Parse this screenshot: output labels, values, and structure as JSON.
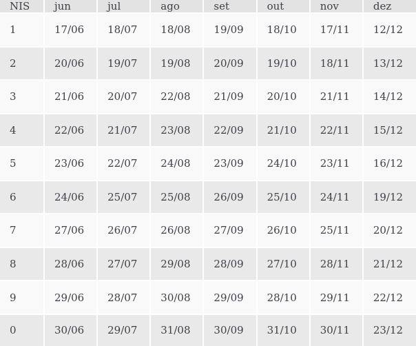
{
  "table": {
    "columns": [
      "NIS",
      "jun",
      "jul",
      "ago",
      "set",
      "out",
      "nov",
      "dez"
    ],
    "rows": [
      [
        "1",
        "17/06",
        "18/07",
        "18/08",
        "19/09",
        "18/10",
        "17/11",
        "12/12"
      ],
      [
        "2",
        "20/06",
        "19/07",
        "19/08",
        "20/09",
        "19/10",
        "18/11",
        "13/12"
      ],
      [
        "3",
        "21/06",
        "20/07",
        "22/08",
        "21/09",
        "20/10",
        "21/11",
        "14/12"
      ],
      [
        "4",
        "22/06",
        "21/07",
        "23/08",
        "22/09",
        "21/10",
        "22/11",
        "15/12"
      ],
      [
        "5",
        "23/06",
        "22/07",
        "24/08",
        "23/09",
        "24/10",
        "23/11",
        "16/12"
      ],
      [
        "6",
        "24/06",
        "25/07",
        "25/08",
        "26/09",
        "25/10",
        "24/11",
        "19/12"
      ],
      [
        "7",
        "27/06",
        "26/07",
        "26/08",
        "27/09",
        "26/10",
        "25/11",
        "20/12"
      ],
      [
        "8",
        "28/06",
        "27/07",
        "29/08",
        "28/09",
        "27/10",
        "28/11",
        "21/12"
      ],
      [
        "9",
        "29/06",
        "28/07",
        "30/08",
        "29/09",
        "28/10",
        "29/11",
        "22/12"
      ],
      [
        "0",
        "30/06",
        "29/07",
        "31/08",
        "30/09",
        "31/10",
        "30/11",
        "23/12"
      ]
    ]
  },
  "colors": {
    "header_bg": "#e3e3e3",
    "row_odd_bg": "#f9f9f9",
    "row_even_bg": "#e9e9e9",
    "border": "#ffffff",
    "text": "#3f3f46"
  },
  "chart_data": {
    "type": "table",
    "title": "",
    "columns": [
      "NIS",
      "jun",
      "jul",
      "ago",
      "set",
      "out",
      "nov",
      "dez"
    ],
    "rows": [
      [
        "1",
        "17/06",
        "18/07",
        "18/08",
        "19/09",
        "18/10",
        "17/11",
        "12/12"
      ],
      [
        "2",
        "20/06",
        "19/07",
        "19/08",
        "20/09",
        "19/10",
        "18/11",
        "13/12"
      ],
      [
        "3",
        "21/06",
        "20/07",
        "22/08",
        "21/09",
        "20/10",
        "21/11",
        "14/12"
      ],
      [
        "4",
        "22/06",
        "21/07",
        "23/08",
        "22/09",
        "21/10",
        "22/11",
        "15/12"
      ],
      [
        "5",
        "23/06",
        "22/07",
        "24/08",
        "23/09",
        "24/10",
        "23/11",
        "16/12"
      ],
      [
        "6",
        "24/06",
        "25/07",
        "25/08",
        "26/09",
        "25/10",
        "24/11",
        "19/12"
      ],
      [
        "7",
        "27/06",
        "26/07",
        "26/08",
        "27/09",
        "26/10",
        "25/11",
        "20/12"
      ],
      [
        "8",
        "28/06",
        "27/07",
        "29/08",
        "28/09",
        "27/10",
        "28/11",
        "21/12"
      ],
      [
        "9",
        "29/06",
        "28/07",
        "30/08",
        "29/09",
        "28/10",
        "29/11",
        "22/12"
      ],
      [
        "0",
        "30/06",
        "29/07",
        "31/08",
        "30/09",
        "31/10",
        "30/11",
        "23/12"
      ]
    ],
    "layout_hints": {
      "striped_rows": true,
      "header_position": "top",
      "first_column_is_row_label": true
    }
  }
}
